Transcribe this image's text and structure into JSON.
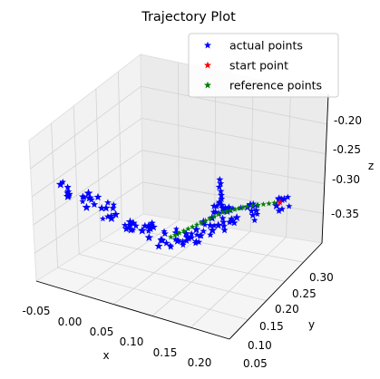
{
  "chart_data": {
    "type": "scatter",
    "title": "Trajectory Plot",
    "xlabel": "x",
    "ylabel": "y",
    "zlabel": "z",
    "xlim": [
      -0.07,
      0.22
    ],
    "ylim": [
      0.05,
      0.33
    ],
    "zlim": [
      -0.39,
      -0.18
    ],
    "x_ticks": [
      "-0.05",
      "0.00",
      "0.05",
      "0.10",
      "0.15",
      "0.20"
    ],
    "y_ticks": [
      "0.05",
      "0.10",
      "0.15",
      "0.20",
      "0.25",
      "0.30"
    ],
    "z_ticks": [
      "-0.35",
      "-0.30",
      "-0.25",
      "-0.20"
    ],
    "grid": true,
    "legend_position": "top-right",
    "series": [
      {
        "name": "actual points",
        "color": "#0000ff",
        "marker": "star"
      },
      {
        "name": "start point",
        "color": "#ff0000",
        "marker": "star"
      },
      {
        "name": "reference points",
        "color": "#008000",
        "marker": "star"
      }
    ],
    "start_point": {
      "x": 0.18,
      "y": 0.255,
      "z": -0.285
    },
    "reference_path": [
      {
        "x": 0.07,
        "y": 0.16,
        "z": -0.33
      },
      {
        "x": 0.095,
        "y": 0.185,
        "z": -0.315
      },
      {
        "x": 0.12,
        "y": 0.21,
        "z": -0.3
      },
      {
        "x": 0.145,
        "y": 0.23,
        "z": -0.292
      },
      {
        "x": 0.18,
        "y": 0.255,
        "z": -0.285
      }
    ],
    "actual_clusters": [
      {
        "x": -0.06,
        "y": 0.12,
        "z": -0.29
      },
      {
        "x": -0.04,
        "y": 0.14,
        "z": -0.305
      },
      {
        "x": -0.02,
        "y": 0.16,
        "z": -0.32
      },
      {
        "x": 0.0,
        "y": 0.18,
        "z": -0.335
      },
      {
        "x": 0.02,
        "y": 0.19,
        "z": -0.345
      },
      {
        "x": 0.04,
        "y": 0.195,
        "z": -0.35
      },
      {
        "x": 0.06,
        "y": 0.2,
        "z": -0.345
      },
      {
        "x": 0.08,
        "y": 0.205,
        "z": -0.34
      },
      {
        "x": 0.1,
        "y": 0.215,
        "z": -0.325
      },
      {
        "x": 0.11,
        "y": 0.225,
        "z": -0.3
      },
      {
        "x": 0.12,
        "y": 0.235,
        "z": -0.31
      },
      {
        "x": 0.15,
        "y": 0.245,
        "z": -0.3
      },
      {
        "x": 0.18,
        "y": 0.255,
        "z": -0.285
      }
    ]
  }
}
